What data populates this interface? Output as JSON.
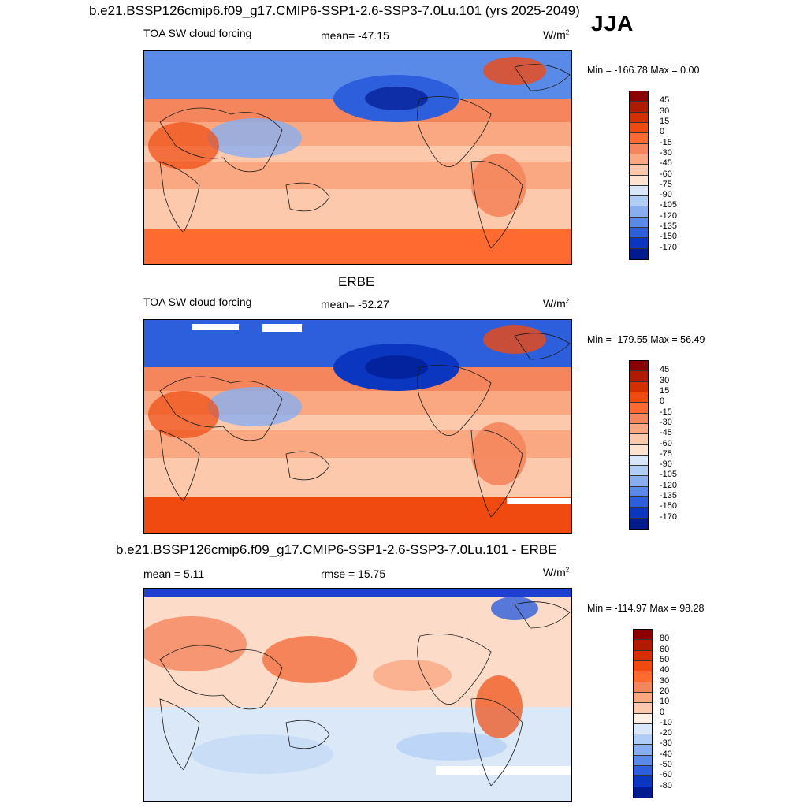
{
  "header": {
    "main_title": "b.e21.BSSP126cmip6.f09_g17.CMIP6-SSP1-2.6-SSP3-7.0Lu.101 (yrs 2025-2049)",
    "season": "JJA"
  },
  "panels": [
    {
      "title": "",
      "left_label": "TOA SW cloud forcing",
      "center_label": "mean= -47.15",
      "units": "W/m",
      "units_exp": "2",
      "minmax": "Min = -166.78 Max =   0.00",
      "colorbar": {
        "labels": [
          "45",
          "30",
          "15",
          "0",
          "-15",
          "-30",
          "-45",
          "-60",
          "-75",
          "-90",
          "-105",
          "-120",
          "-135",
          "-150",
          "-170"
        ],
        "colors": [
          "#8b0000",
          "#b01b00",
          "#d42f00",
          "#f04a10",
          "#ff6a30",
          "#f4855c",
          "#f9a882",
          "#fcc9ac",
          "#fee3d0",
          "#d8e8fa",
          "#b0cdf5",
          "#88aef0",
          "#5a8ae8",
          "#2d5fdc",
          "#0a36c0",
          "#001a90"
        ]
      }
    },
    {
      "title": "ERBE",
      "left_label": "TOA SW cloud forcing",
      "center_label": "mean= -52.27",
      "units": "W/m",
      "units_exp": "2",
      "minmax": "Min = -179.55 Max =  56.49",
      "colorbar": {
        "labels": [
          "45",
          "30",
          "15",
          "0",
          "-15",
          "-30",
          "-45",
          "-60",
          "-75",
          "-90",
          "-105",
          "-120",
          "-135",
          "-150",
          "-170"
        ],
        "colors": [
          "#8b0000",
          "#b01b00",
          "#d42f00",
          "#f04a10",
          "#ff6a30",
          "#f4855c",
          "#f9a882",
          "#fcc9ac",
          "#fee3d0",
          "#d8e8fa",
          "#b0cdf5",
          "#88aef0",
          "#5a8ae8",
          "#2d5fdc",
          "#0a36c0",
          "#001a90"
        ]
      }
    },
    {
      "title": "b.e21.BSSP126cmip6.f09_g17.CMIP6-SSP1-2.6-SSP3-7.0Lu.101 - ERBE",
      "left_label": "mean =   5.11",
      "center_label": "rmse =  15.75",
      "units": "W/m",
      "units_exp": "2",
      "minmax": "Min = -114.97 Max =  98.28",
      "colorbar": {
        "labels": [
          "80",
          "60",
          "50",
          "40",
          "30",
          "20",
          "10",
          "0",
          "-10",
          "-20",
          "-30",
          "-40",
          "-50",
          "-60",
          "-80"
        ],
        "colors": [
          "#8b0000",
          "#b01b00",
          "#d42f00",
          "#f04a10",
          "#ff6a30",
          "#f4855c",
          "#f9a882",
          "#fcc9ac",
          "#fef0e6",
          "#d8e8fa",
          "#b0cdf5",
          "#88aef0",
          "#5a8ae8",
          "#2d5fdc",
          "#0a36c0",
          "#001a90"
        ]
      }
    }
  ],
  "chart_data": [
    {
      "type": "heatmap",
      "title": "TOA SW cloud forcing",
      "subtitle": "b.e21.BSSP126cmip6.f09_g17.CMIP6-SSP1-2.6-SSP3-7.0Lu.101 (yrs 2025-2049)",
      "season": "JJA",
      "mean": -47.15,
      "min": -166.78,
      "max": 0.0,
      "units": "W/m2",
      "levels": [
        -170,
        -150,
        -135,
        -120,
        -105,
        -90,
        -75,
        -60,
        -45,
        -30,
        -15,
        0,
        15,
        30,
        45
      ]
    },
    {
      "type": "heatmap",
      "title": "TOA SW cloud forcing",
      "subtitle": "ERBE",
      "mean": -52.27,
      "min": -179.55,
      "max": 56.49,
      "units": "W/m2",
      "levels": [
        -170,
        -150,
        -135,
        -120,
        -105,
        -90,
        -75,
        -60,
        -45,
        -30,
        -15,
        0,
        15,
        30,
        45
      ]
    },
    {
      "type": "heatmap",
      "title": "b.e21.BSSP126cmip6.f09_g17.CMIP6-SSP1-2.6-SSP3-7.0Lu.101 - ERBE",
      "mean": 5.11,
      "rmse": 15.75,
      "min": -114.97,
      "max": 98.28,
      "units": "W/m2",
      "levels": [
        -80,
        -60,
        -50,
        -40,
        -30,
        -20,
        -10,
        0,
        10,
        20,
        30,
        40,
        50,
        60,
        80
      ]
    }
  ]
}
